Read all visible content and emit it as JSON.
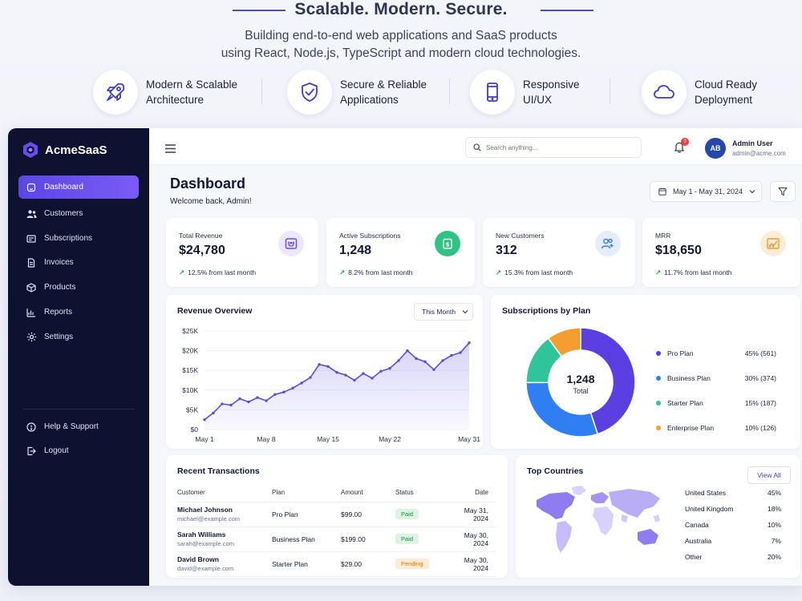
{
  "hero": {
    "title": "Scalable. Modern. Secure.",
    "subtitle_line1": "Building end-to-end web applications and SaaS products",
    "subtitle_line2": "using React, Node.js, TypeScript and modern cloud technologies.",
    "features": [
      {
        "line1": "Modern & Scalable",
        "line2": "Architecture",
        "icon": "rocket-icon"
      },
      {
        "line1": "Secure & Reliable",
        "line2": "Applications",
        "icon": "shield-check-icon"
      },
      {
        "line1": "Responsive",
        "line2": "UI/UX",
        "icon": "mobile-icon"
      },
      {
        "line1": "Cloud Ready",
        "line2": "Deployment",
        "icon": "cloud-icon"
      }
    ]
  },
  "brand": {
    "name": "AcmeSaaS"
  },
  "sidebar": {
    "items": [
      {
        "label": "Dashboard",
        "icon": "dashboard-icon",
        "active": true
      },
      {
        "label": "Customers",
        "icon": "users-icon"
      },
      {
        "label": "Subscriptions",
        "icon": "card-icon"
      },
      {
        "label": "Invoices",
        "icon": "invoice-icon"
      },
      {
        "label": "Products",
        "icon": "box-icon"
      },
      {
        "label": "Reports",
        "icon": "chart-icon"
      },
      {
        "label": "Settings",
        "icon": "gear-icon"
      }
    ],
    "bottom": [
      {
        "label": "Help & Support",
        "icon": "help-icon"
      },
      {
        "label": "Logout",
        "icon": "logout-icon"
      }
    ]
  },
  "topbar": {
    "search_placeholder": "Search anything...",
    "notification_count": "3",
    "user": {
      "initials": "AB",
      "name": "Admin User",
      "email": "admin@acme.com"
    }
  },
  "page": {
    "title": "Dashboard",
    "subtitle": "Welcome back, Admin!",
    "date_range": "May 1 - May 31, 2024"
  },
  "stats": [
    {
      "label": "Total Revenue",
      "value": "$24,780",
      "change": "12.5% from last month",
      "icon": "wallet-icon",
      "color": "#7c5cf2",
      "bg": "#ece7fe"
    },
    {
      "label": "Active Subscriptions",
      "value": "1,248",
      "change": "8.2% from last month",
      "icon": "subscription-icon",
      "color": "#22b573",
      "bg": "#32c483"
    },
    {
      "label": "New Customers",
      "value": "312",
      "change": "15.3% from last month",
      "icon": "add-users-icon",
      "color": "#2f7ef2",
      "bg": "#e3edfd"
    },
    {
      "label": "MRR",
      "value": "$18,650",
      "change": "11.7% from last month",
      "icon": "growth-icon",
      "color": "#f19a2b",
      "bg": "#fdecd6"
    }
  ],
  "revenue": {
    "title": "Revenue Overview",
    "filter": "This Month"
  },
  "chart_data": [
    {
      "type": "area",
      "title": "Revenue Overview",
      "y_ticks": [
        "$25K",
        "$20K",
        "$15K",
        "$10K",
        "$5K",
        "$0"
      ],
      "x_ticks": [
        "May 1",
        "May 8",
        "May 15",
        "May 22",
        "May 31"
      ],
      "ylim": [
        0,
        25000
      ],
      "x": [
        1,
        2,
        3,
        4,
        5,
        6,
        7,
        8,
        9,
        10,
        11,
        12,
        13,
        14,
        15,
        16,
        17,
        18,
        19,
        20,
        21,
        22,
        23,
        24,
        25,
        26,
        27,
        28,
        29,
        30,
        31
      ],
      "series": [
        {
          "values": [
            2500,
            4200,
            6500,
            6200,
            7800,
            7000,
            8100,
            7300,
            8900,
            9500,
            10500,
            11800,
            13200,
            16500,
            16000,
            14500,
            13800,
            12500,
            14200,
            13000,
            14800,
            15500,
            17500,
            20000,
            18000,
            17200,
            15200,
            17500,
            18800,
            19500,
            22000
          ]
        }
      ],
      "grid": true,
      "color": "#5b4ed8"
    },
    {
      "type": "pie",
      "title": "Subscriptions by Plan",
      "center_value": "1,248",
      "center_label": "Total",
      "labels": [
        "Pro Plan",
        "Business Plan",
        "Starter Plan",
        "Enterprise Plan"
      ],
      "values": [
        561,
        374,
        187,
        126
      ],
      "percents": [
        "45%",
        "30%",
        "15%",
        "10%"
      ],
      "display": [
        "45% (561)",
        "30% (374)",
        "15% (187)",
        "10% (126)"
      ],
      "colors": [
        "#5b3fe0",
        "#2f7ef2",
        "#2fc49a",
        "#f59e2f"
      ],
      "legend": "right"
    }
  ],
  "transactions": {
    "title": "Recent Transactions",
    "columns": [
      "Customer",
      "Plan",
      "Amount",
      "Status",
      "Date"
    ],
    "rows": [
      {
        "name": "Michael Johnson",
        "email": "michael@example.com",
        "plan": "Pro Plan",
        "amount": "$99.00",
        "status": "Paid",
        "date": "May 31, 2024"
      },
      {
        "name": "Sarah Williams",
        "email": "sarah@example.com",
        "plan": "Business Plan",
        "amount": "$199.00",
        "status": "Paid",
        "date": "May 30, 2024"
      },
      {
        "name": "David Brown",
        "email": "david@example.com",
        "plan": "Starter Plan",
        "amount": "$29.00",
        "status": "Pending",
        "date": "May 30, 2024"
      }
    ]
  },
  "countries": {
    "title": "Top Countries",
    "view_all": "View All",
    "rows": [
      {
        "name": "United States",
        "pct": "45%"
      },
      {
        "name": "United Kingdom",
        "pct": "18%"
      },
      {
        "name": "Canada",
        "pct": "10%"
      },
      {
        "name": "Australia",
        "pct": "7%"
      },
      {
        "name": "Other",
        "pct": "20%"
      }
    ]
  }
}
